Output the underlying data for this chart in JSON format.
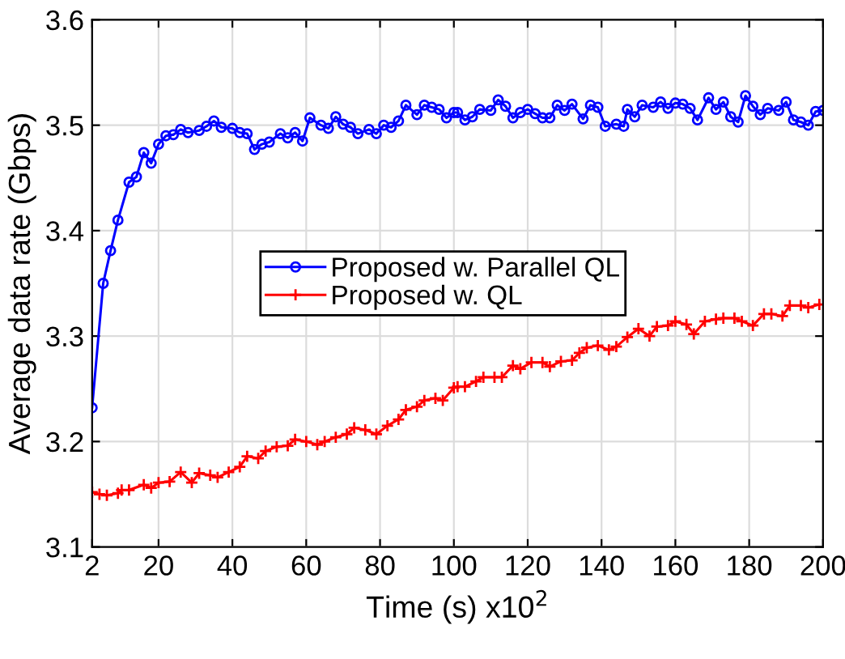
{
  "chart_data": {
    "type": "line",
    "xlabel": "Time (s) x10$^{2}$",
    "ylabel": "Average data rate (Gbps)",
    "xlim": [
      2,
      200
    ],
    "xticks": [
      2,
      20,
      40,
      60,
      80,
      100,
      120,
      140,
      160,
      180,
      200
    ],
    "ylim": [
      3.1,
      3.6
    ],
    "yticks": [
      3.1,
      3.2,
      3.3,
      3.4,
      3.5,
      3.6
    ],
    "grid": true,
    "legend": "center",
    "series": [
      {
        "name": "Proposed w. Parallel QL",
        "color": "#0000ff",
        "marker": "circle",
        "x": [
          2,
          5,
          7,
          9,
          12,
          14,
          16,
          18,
          20,
          22,
          24,
          26,
          28,
          31,
          33,
          35,
          37,
          40,
          42,
          44,
          46,
          48,
          50,
          53,
          55,
          57,
          59,
          61,
          64,
          66,
          68,
          70,
          72,
          74,
          77,
          79,
          81,
          83,
          85,
          87,
          90,
          92,
          94,
          96,
          98,
          100,
          101,
          103,
          105,
          107,
          110,
          112,
          114,
          116,
          118,
          120,
          122,
          124,
          126,
          128,
          130,
          132,
          135,
          137,
          139,
          141,
          144,
          146,
          147,
          149,
          151,
          154,
          156,
          158,
          160,
          162,
          164,
          166,
          169,
          171,
          173,
          175,
          177,
          179,
          181,
          183,
          185,
          188,
          190,
          192,
          194,
          196,
          198,
          200
        ],
        "values": [
          3.232,
          3.35,
          3.381,
          3.41,
          3.446,
          3.451,
          3.474,
          3.464,
          3.482,
          3.49,
          3.491,
          3.496,
          3.493,
          3.495,
          3.499,
          3.504,
          3.498,
          3.497,
          3.493,
          3.492,
          3.477,
          3.482,
          3.484,
          3.492,
          3.488,
          3.493,
          3.485,
          3.507,
          3.5,
          3.497,
          3.508,
          3.501,
          3.498,
          3.492,
          3.496,
          3.492,
          3.5,
          3.498,
          3.504,
          3.519,
          3.51,
          3.519,
          3.517,
          3.515,
          3.507,
          3.512,
          3.512,
          3.505,
          3.508,
          3.515,
          3.514,
          3.524,
          3.518,
          3.507,
          3.512,
          3.515,
          3.511,
          3.507,
          3.507,
          3.519,
          3.514,
          3.52,
          3.506,
          3.519,
          3.517,
          3.499,
          3.501,
          3.499,
          3.515,
          3.508,
          3.519,
          3.517,
          3.522,
          3.516,
          3.521,
          3.52,
          3.516,
          3.505,
          3.526,
          3.515,
          3.522,
          3.508,
          3.503,
          3.528,
          3.518,
          3.51,
          3.516,
          3.514,
          3.522,
          3.505,
          3.503,
          3.5,
          3.513,
          3.514
        ]
      },
      {
        "name": "Proposed w. QL",
        "color": "#ff0000",
        "marker": "cross",
        "x": [
          2,
          4,
          6,
          9,
          10,
          12,
          16,
          18,
          20,
          23,
          26,
          29,
          31,
          34,
          36,
          39,
          42,
          44,
          47,
          49,
          52,
          55,
          57,
          60,
          63,
          65,
          68,
          71,
          73,
          76,
          79,
          82,
          85,
          87,
          90,
          92,
          95,
          97,
          100,
          101,
          103,
          106,
          108,
          111,
          113,
          116,
          118,
          121,
          124,
          126,
          129,
          132,
          134,
          136,
          139,
          142,
          144,
          147,
          150,
          153,
          155,
          158,
          160,
          163,
          165,
          168,
          171,
          173,
          176,
          178,
          181,
          184,
          186,
          189,
          191,
          194,
          196,
          199
        ],
        "values": [
          3.152,
          3.15,
          3.149,
          3.151,
          3.154,
          3.154,
          3.159,
          3.156,
          3.161,
          3.162,
          3.171,
          3.161,
          3.17,
          3.168,
          3.166,
          3.171,
          3.176,
          3.186,
          3.184,
          3.191,
          3.195,
          3.196,
          3.202,
          3.2,
          3.197,
          3.2,
          3.204,
          3.207,
          3.213,
          3.211,
          3.207,
          3.215,
          3.221,
          3.23,
          3.233,
          3.239,
          3.241,
          3.239,
          3.251,
          3.252,
          3.252,
          3.257,
          3.261,
          3.261,
          3.261,
          3.272,
          3.269,
          3.275,
          3.275,
          3.271,
          3.276,
          3.277,
          3.284,
          3.289,
          3.291,
          3.287,
          3.29,
          3.299,
          3.307,
          3.3,
          3.309,
          3.31,
          3.314,
          3.311,
          3.302,
          3.314,
          3.316,
          3.317,
          3.317,
          3.314,
          3.31,
          3.321,
          3.321,
          3.319,
          3.329,
          3.329,
          3.327,
          3.33
        ]
      }
    ]
  }
}
